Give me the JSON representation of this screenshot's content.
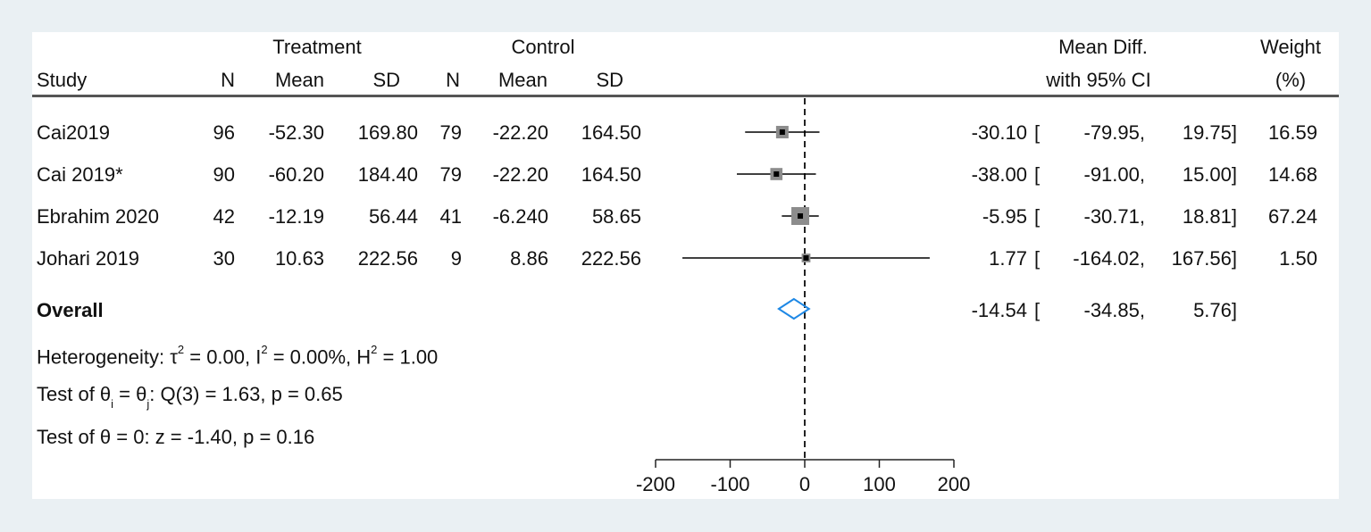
{
  "header": {
    "treatment": "Treatment",
    "control": "Control",
    "study": "Study",
    "n": "N",
    "mean": "Mean",
    "sd": "SD",
    "mean_diff": "Mean Diff.",
    "with_ci": "with 95% CI",
    "weight": "Weight",
    "pct": "(%)"
  },
  "rows": [
    {
      "study": "Cai2019",
      "t_n": "96",
      "t_mean": "-52.30",
      "t_sd": "169.80",
      "c_n": "79",
      "c_mean": "-22.20",
      "c_sd": "164.50",
      "md": "-30.10",
      "lo": "-79.95,",
      "hi": "19.75]",
      "weight": "16.59"
    },
    {
      "study": "Cai 2019*",
      "t_n": "90",
      "t_mean": "-60.20",
      "t_sd": "184.40",
      "c_n": "79",
      "c_mean": "-22.20",
      "c_sd": "164.50",
      "md": "-38.00",
      "lo": "-91.00,",
      "hi": "15.00]",
      "weight": "14.68"
    },
    {
      "study": "Ebrahim 2020",
      "t_n": "42",
      "t_mean": "-12.19",
      "t_sd": "56.44",
      "c_n": "41",
      "c_mean": "-6.240",
      "c_sd": "58.65",
      "md": "-5.95",
      "lo": "-30.71,",
      "hi": "18.81]",
      "weight": "67.24"
    },
    {
      "study": "Johari 2019",
      "t_n": "30",
      "t_mean": "10.63",
      "t_sd": "222.56",
      "c_n": "9",
      "c_mean": "8.86",
      "c_sd": "222.56",
      "md": "1.77",
      "lo": "-164.02,",
      "hi": "167.56]",
      "weight": "1.50"
    }
  ],
  "overall": {
    "label": "Overall",
    "md": "-14.54",
    "lo": "-34.85,",
    "hi": "5.76]"
  },
  "bracket": "[",
  "stats": {
    "het_a": "Heterogeneity: τ",
    "het_b": " = 0.00, I",
    "het_c": " = 0.00%, H",
    "het_d": " = 1.00",
    "sq": "2",
    "test1_a": "Test of θ",
    "test1_i": "i",
    "test1_b": " = θ",
    "test1_j": "j",
    "test1_c": ": Q(3) = 1.63, p = 0.65",
    "test2": "Test of θ = 0: z = -1.40, p = 0.16"
  },
  "chart_data": {
    "type": "forest",
    "xlim": [
      -200,
      200
    ],
    "ticks": [
      "-200",
      "-100",
      "0",
      "100",
      "200"
    ],
    "tick_values": [
      -200,
      -100,
      0,
      100,
      200
    ],
    "reference_line": 0,
    "studies": [
      {
        "name": "Cai2019",
        "md": -30.1,
        "lo": -79.95,
        "hi": 19.75,
        "weight": 16.59
      },
      {
        "name": "Cai 2019*",
        "md": -38.0,
        "lo": -91.0,
        "hi": 15.0,
        "weight": 14.68
      },
      {
        "name": "Ebrahim 2020",
        "md": -5.95,
        "lo": -30.71,
        "hi": 18.81,
        "weight": 67.24
      },
      {
        "name": "Johari 2019",
        "md": 1.77,
        "lo": -164.02,
        "hi": 167.56,
        "weight": 1.5
      }
    ],
    "overall": {
      "md": -14.54,
      "lo": -34.85,
      "hi": 5.76
    },
    "colors": {
      "box": "#8c8c8c",
      "center": "#000000",
      "diamond": "#1e88e5",
      "line": "#000000"
    }
  }
}
